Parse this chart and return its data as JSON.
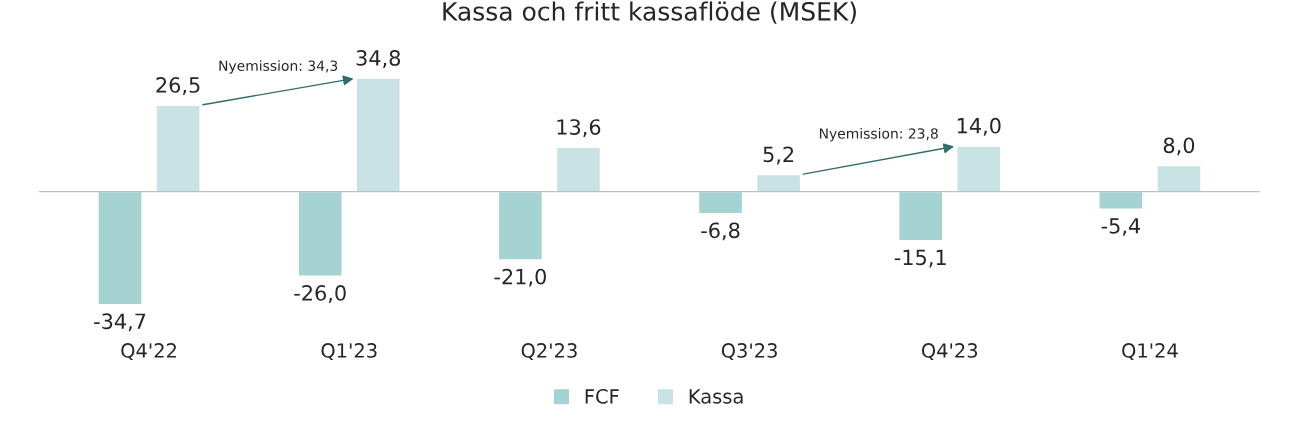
{
  "chart_data": {
    "type": "bar",
    "title": "Kassa och fritt kassaflöde (MSEK)",
    "categories": [
      "Q4'22",
      "Q1'23",
      "Q2'23",
      "Q3'23",
      "Q4'23",
      "Q1'24"
    ],
    "series": [
      {
        "name": "FCF",
        "color": "#a5d3d2",
        "values": [
          -34.7,
          -26.0,
          -21.0,
          -6.8,
          -15.1,
          -5.4
        ],
        "value_labels": [
          "-34,7",
          "-26,0",
          "-21,0",
          "-6,8",
          "-15,1",
          "-5,4"
        ]
      },
      {
        "name": "Kassa",
        "color": "#c9e3e4",
        "values": [
          26.5,
          34.8,
          13.6,
          5.2,
          14.0,
          8.0
        ],
        "value_labels": [
          "26,5",
          "34,8",
          "13,6",
          "5,2",
          "14,0",
          "8,0"
        ]
      }
    ],
    "annotations": [
      "Nyemission: 34,3",
      "Nyemission: 23,8"
    ],
    "legend": "bottom",
    "grid": false
  }
}
